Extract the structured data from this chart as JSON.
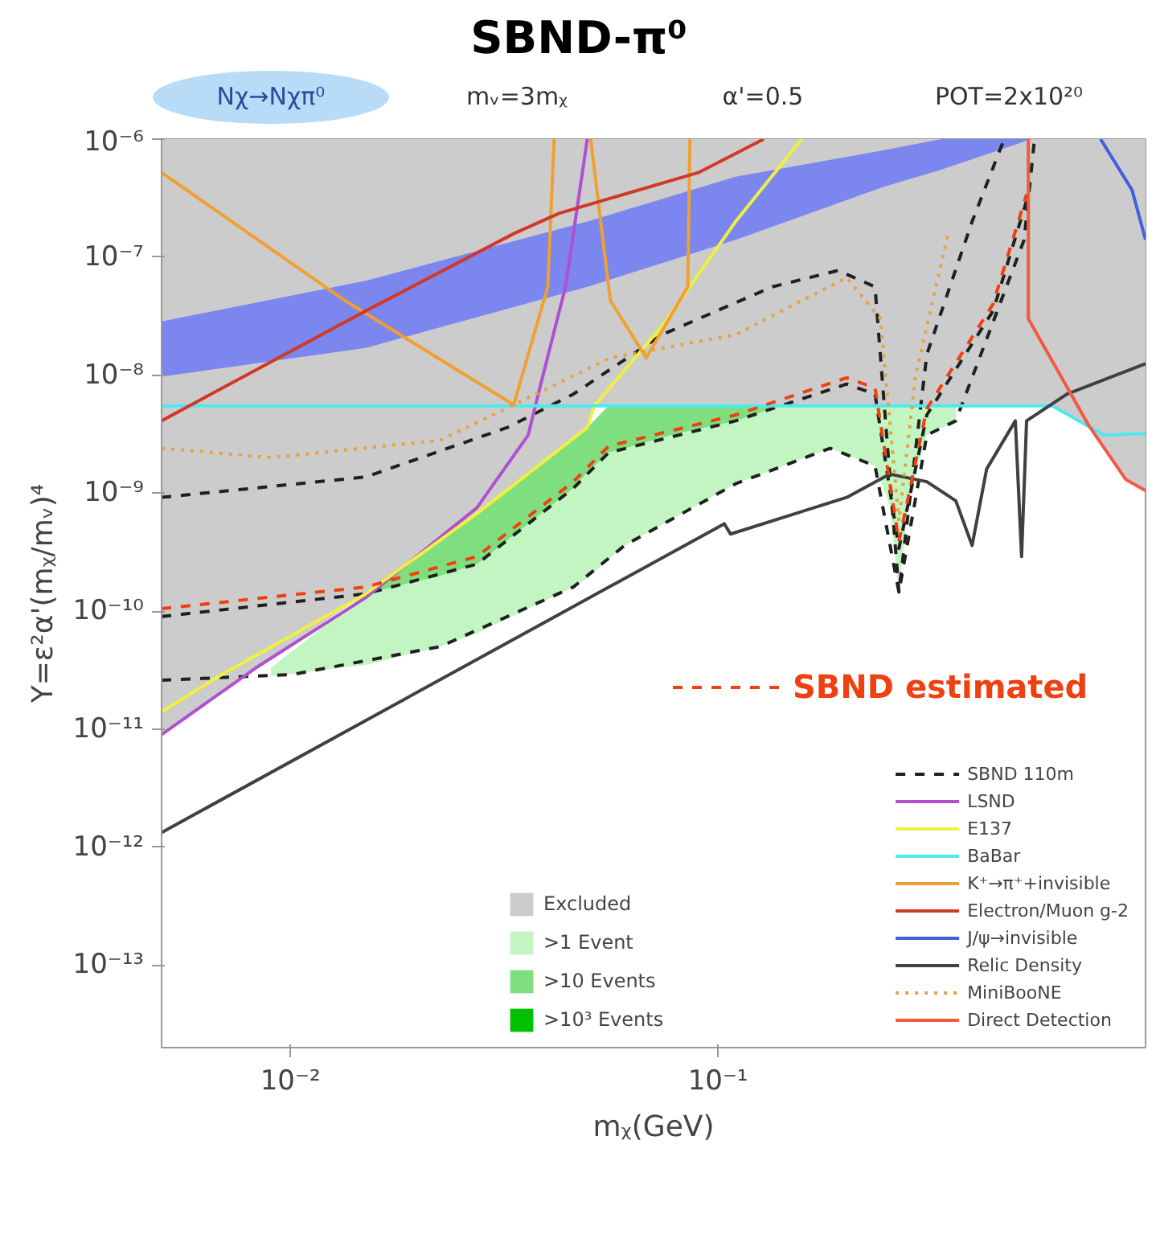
{
  "chart_data": {
    "type": "line",
    "title": "SBND-π⁰",
    "annotations": [
      "Nχ→Nχπ⁰",
      "mᵥ=3mᵪ",
      "α'=0.5",
      "POT=2x10²⁰"
    ],
    "xlabel": "mᵪ(GeV)",
    "ylabel": "Y=ε²α'(mᵪ/mᵥ)⁴",
    "log": "xy",
    "grid": false,
    "legend": "bottom right",
    "xlim": [
      0.005,
      1
    ],
    "ylim": [
      2e-14,
      1e-06
    ],
    "xticks": [
      {
        "value": 0.01,
        "label": "10⁻²"
      },
      {
        "value": 0.1,
        "label": "10⁻¹"
      }
    ],
    "yticks": [
      {
        "value": 1e-13,
        "label": "10⁻¹³"
      },
      {
        "value": 1e-12,
        "label": "10⁻¹²"
      },
      {
        "value": 1e-11,
        "label": "10⁻¹¹"
      },
      {
        "value": 1e-10,
        "label": "10⁻¹⁰"
      },
      {
        "value": 1e-09,
        "label": "10⁻⁹"
      },
      {
        "value": 1e-08,
        "label": "10⁻⁸"
      },
      {
        "value": 1e-07,
        "label": "10⁻⁷"
      },
      {
        "value": 1e-06,
        "label": "10⁻⁶"
      }
    ],
    "series": [
      {
        "name": "Excluded",
        "color": "#cccccc",
        "x": [
          0.005,
          0.0083,
          0.015,
          0.0273,
          0.0495,
          0.0514,
          0.605,
          0.7,
          0.738,
          0.9,
          1.0
        ],
        "values": [
          null,
          null,
          null,
          null,
          null,
          null,
          null,
          null,
          null,
          null,
          null
        ],
        "upper": [
          1e-06,
          1e-06,
          1e-06,
          1e-06,
          1e-06,
          1e-06,
          1e-06,
          1e-06,
          1e-06,
          1e-06,
          1e-06
        ],
        "lower": [
          9e-12,
          3.3e-11,
          1.4e-10,
          6.7e-10,
          3.6e-09,
          5.5e-09,
          5.5e-09,
          4.2e-09,
          3.7e-09,
          1.3e-09,
          1.05e-09
        ]
      },
      {
        "color": "#7b86ee",
        "x": [
          0.005,
          0.015,
          0.0495,
          0.11,
          0.242,
          0.333,
          0.54
        ],
        "values": [
          null,
          null,
          null,
          null,
          null,
          null,
          null
        ],
        "upper": [
          2.85e-08,
          6.3e-08,
          2e-07,
          4.8e-07,
          8e-07,
          1e-06,
          1e-06
        ],
        "lower": [
          9.7e-09,
          1.7e-08,
          5.6e-08,
          1.4e-07,
          3.9e-07,
          5.5e-07,
          1e-06
        ]
      },
      {
        "name": ">1 Event",
        "color": "#c2f5c2",
        "x": [
          0.009,
          0.015,
          0.0224,
          0.0273,
          0.0459,
          0.0495,
          0.0605,
          0.11,
          0.183,
          0.233,
          0.252,
          0.265,
          0.28,
          0.308,
          0.36
        ],
        "values": [
          null,
          null,
          null,
          null,
          null,
          null,
          null,
          null,
          null,
          null,
          null,
          null,
          null,
          null,
          null
        ],
        "upper": [
          3.3e-11,
          1.4e-10,
          4e-10,
          6.7e-10,
          3e-09,
          3.6e-09,
          5.5e-09,
          5.5e-09,
          5.5e-09,
          5.5e-09,
          5.5e-09,
          5.5e-09,
          5.5e-09,
          5.5e-09,
          5.5e-09
        ],
        "lower": [
          2.8e-11,
          3.5e-11,
          5e-11,
          6.5e-11,
          1.6e-10,
          1.9e-10,
          3.6e-10,
          1.2e-09,
          2.4e-09,
          1.7e-09,
          8e-10,
          1.45e-10,
          1e-09,
          3.1e-09,
          4.1e-09
        ]
      },
      {
        "name": ">10 Events",
        "color": "#7fdf7f",
        "x": [
          0.015,
          0.0224,
          0.0273,
          0.0459,
          0.0495,
          0.0555,
          0.08,
          0.11,
          0.14
        ],
        "values": [
          null,
          null,
          null,
          null,
          null,
          null,
          null,
          null,
          null
        ],
        "upper": [
          1.4e-10,
          4e-10,
          6.7e-10,
          3e-09,
          3.6e-09,
          5.5e-09,
          5.5e-09,
          5.5e-09,
          5.5e-09
        ],
        "lower": [
          1.4e-10,
          2e-10,
          2.5e-10,
          1.1e-09,
          1.5e-09,
          2.2e-09,
          3.2e-09,
          4.1e-09,
          5.5e-09
        ]
      },
      {
        "type": "area",
        "name": ">10³ Events",
        "color": "#00c000"
      },
      {
        "name": "SBND 110m",
        "color": "#202020",
        "line_style": "dashed",
        "x": [
          0.005,
          0.015,
          0.0322,
          0.0459,
          0.074,
          0.134,
          0.191,
          0.233,
          0.265,
          0.308,
          0.393,
          0.467
        ],
        "values": [
          9.2e-10,
          1.37e-09,
          3.6e-09,
          6.9e-09,
          2.2e-08,
          5.6e-08,
          7.7e-08,
          5.6e-08,
          1.45e-10,
          1.5e-08,
          2e-07,
          1e-06
        ]
      },
      {
        "color": "#202020",
        "line_style": "dashed",
        "x": [
          0.005,
          0.015,
          0.0273,
          0.0459,
          0.0555,
          0.11,
          0.2,
          0.233,
          0.265,
          0.308,
          0.44,
          0.527
        ],
        "values": [
          9e-11,
          1.4e-10,
          2.5e-10,
          1.1e-09,
          2.2e-09,
          4.1e-09,
          8.4e-09,
          6.9e-09,
          3.4e-10,
          4.6e-09,
          3.5e-08,
          3e-07
        ]
      },
      {
        "color": "#202020",
        "line_style": "dashed",
        "x": [
          0.005,
          0.0101,
          0.0224,
          0.0459,
          0.0605,
          0.11,
          0.183,
          0.233,
          0.265,
          0.308,
          0.36,
          0.52,
          0.55
        ],
        "values": [
          2.6e-11,
          2.9e-11,
          5e-11,
          1.6e-10,
          3.6e-10,
          1.2e-09,
          2.4e-09,
          1.7e-09,
          1.45e-10,
          3.1e-09,
          4.1e-09,
          1.4e-07,
          1e-06
        ]
      },
      {
        "name": "LSND",
        "color": "#b050d0",
        "x": [
          0.005,
          0.0083,
          0.015,
          0.0273,
          0.036,
          0.038,
          0.044,
          0.0495
        ],
        "values": [
          9e-12,
          3.3e-11,
          1.3e-10,
          7.5e-10,
          3.1e-09,
          6.9e-09,
          5.6e-08,
          1e-06
        ]
      },
      {
        "name": "E137",
        "color": "#f0f040",
        "x": [
          0.005,
          0.0068,
          0.015,
          0.0273,
          0.0495,
          0.0514,
          0.074,
          0.11,
          0.157
        ],
        "values": [
          1.4e-11,
          2.8e-11,
          1.4e-10,
          6.7e-10,
          3.6e-09,
          5.5e-09,
          2.6e-08,
          2e-07,
          1e-06
        ]
      },
      {
        "name": "BaBar",
        "color": "#50e8f0",
        "x": [
          0.005,
          0.605,
          0.8,
          1.0
        ],
        "values": [
          5.5e-09,
          5.5e-09,
          3.1e-09,
          3.2e-09
        ]
      },
      {
        "name": "K⁺→π⁺+invisible",
        "color": "#f0a030",
        "x": [
          0.005,
          0.0134,
          0.0333,
          0.04,
          0.0414,
          0.045,
          0.0504,
          0.056,
          0.068,
          0.085,
          0.086
        ],
        "values": [
          5.2e-07,
          4.3e-08,
          5.6e-09,
          5.6e-08,
          1e-06,
          null,
          1e-06,
          4.3e-08,
          1.4e-08,
          5.6e-08,
          1e-06
        ]
      },
      {
        "name": "Electron/Muon g-2",
        "color": "#d03828",
        "x": [
          0.005,
          0.015,
          0.0333,
          0.0425,
          0.09,
          0.128
        ],
        "values": [
          4.1e-09,
          3.5e-08,
          1.58e-07,
          2.35e-07,
          5.2e-07,
          1e-06
        ]
      },
      {
        "name": "J/ψ→invisible",
        "color": "#4060e0",
        "x": [
          0.785,
          0.93,
          1.0
        ],
        "values": [
          1e-06,
          3.7e-07,
          1.4e-07
        ]
      },
      {
        "name": "Relic Density",
        "color": "#404040",
        "x": [
          0.005,
          0.1035,
          0.107,
          0.2,
          0.252,
          0.308,
          0.36,
          0.393,
          0.425,
          0.496,
          0.513,
          0.527,
          0.655,
          1.0
        ],
        "values": [
          1.33e-12,
          5.5e-10,
          4.5e-10,
          9.2e-10,
          1.45e-09,
          1.25e-09,
          8.6e-10,
          3.6e-10,
          1.6e-09,
          4.1e-09,
          2.9e-10,
          4.1e-09,
          6.9e-09,
          1.25e-08
        ]
      },
      {
        "name": "MiniBooNE",
        "color": "#e8a040",
        "line_style": "dotted",
        "x": [
          0.005,
          0.009,
          0.0224,
          0.0333,
          0.056,
          0.11,
          0.2,
          0.24,
          0.265,
          0.29,
          0.347
        ],
        "values": [
          2.4e-09,
          2e-09,
          2.8e-09,
          5.6e-09,
          1.4e-08,
          2.2e-08,
          6.7e-08,
          3e-08,
          5.8e-10,
          1e-08,
          1.7e-07
        ]
      },
      {
        "name": "Direct Detection",
        "color": "#f05a40",
        "x": [
          0.532,
          0.532,
          0.738,
          0.9,
          1.0
        ],
        "values": [
          1e-06,
          3e-08,
          3.7e-09,
          1.3e-09,
          1.05e-09
        ]
      },
      {
        "name": "SBND estimated",
        "color": "#f04010",
        "line_style": "dashed",
        "x": [
          0.005,
          0.015,
          0.0273,
          0.0459,
          0.0555,
          0.11,
          0.2,
          0.233,
          0.265,
          0.308,
          0.44,
          0.527
        ],
        "values": [
          1.05e-10,
          1.6e-10,
          2.9e-10,
          1.25e-09,
          2.5e-09,
          4.6e-09,
          9.5e-09,
          7.8e-09,
          3.9e-10,
          5.2e-09,
          4e-08,
          3.4e-07
        ]
      }
    ]
  }
}
